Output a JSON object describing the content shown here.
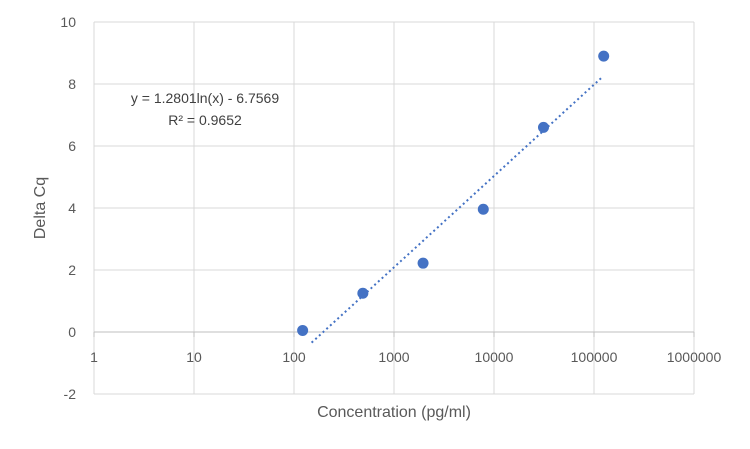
{
  "chart_data": {
    "type": "scatter",
    "x_scale": "log",
    "xlim": [
      1,
      1000000
    ],
    "ylim": [
      -2,
      10
    ],
    "x_ticks": [
      1,
      10,
      100,
      1000,
      10000,
      100000,
      1000000
    ],
    "x_tick_labels": [
      "1",
      "10",
      "100",
      "1000",
      "10000",
      "100000",
      "1000000"
    ],
    "y_ticks": [
      -2,
      0,
      2,
      4,
      6,
      8,
      10
    ],
    "y_tick_labels": [
      "-2",
      "0",
      "2",
      "4",
      "6",
      "8",
      "10"
    ],
    "xlabel": "Concentration (pg/ml)",
    "ylabel": "Delta Cq",
    "grid": true,
    "series": [
      {
        "x": [
          122,
          488,
          1953,
          7813,
          31250,
          125000
        ],
        "y": [
          0.05,
          1.25,
          2.22,
          3.96,
          6.6,
          8.9
        ],
        "color": "#4472C4"
      }
    ],
    "trendline": {
      "type": "logarithmic",
      "a": 1.2801,
      "b": -6.7569,
      "x_range": [
        150,
        120000
      ],
      "color": "#4472C4",
      "style": "dotted"
    },
    "annotations": {
      "equation": "y = 1.2801ln(x) - 6.7569",
      "r_squared": "R² = 0.9652"
    },
    "colors": {
      "grid": "#D9D9D9",
      "text": "#595959",
      "marker": "#4472C4"
    }
  }
}
